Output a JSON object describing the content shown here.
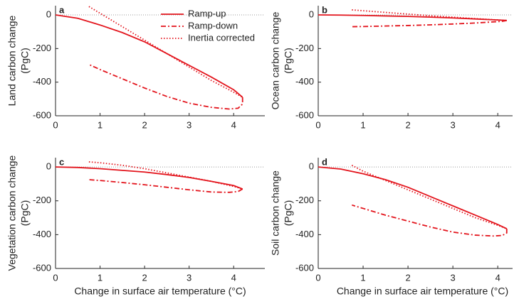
{
  "chart_data": [
    {
      "type": "line",
      "panel_label": "a",
      "ylabel": [
        "Land carbon change",
        "(PgC)"
      ],
      "xlim": [
        0,
        4.7
      ],
      "ylim": [
        -600,
        55
      ],
      "xticks": [
        0,
        1,
        2,
        3,
        4
      ],
      "yticks": [
        -600,
        -400,
        -200,
        0
      ],
      "reference_line": 0,
      "reference_color": "#999999",
      "legend": "upper-center",
      "series": [
        {
          "name": "Ramp-up",
          "style": "solid",
          "color": "#e3141c",
          "x": [
            0,
            0.5,
            1,
            1.5,
            2,
            2.5,
            3,
            3.5,
            4,
            4.2
          ],
          "values": [
            0,
            -20,
            -60,
            -105,
            -160,
            -230,
            -300,
            -370,
            -445,
            -490
          ]
        },
        {
          "name": "Ramp-down",
          "style": "dashed",
          "color": "#e3141c",
          "x": [
            4.2,
            4.2,
            4.1,
            3.9,
            3.5,
            3,
            2.5,
            2,
            1.5,
            1,
            0.75
          ],
          "values": [
            -490,
            -530,
            -555,
            -560,
            -550,
            -525,
            -485,
            -435,
            -380,
            -325,
            -295
          ]
        },
        {
          "name": "Inertia corrected",
          "style": "dotted",
          "color": "#e3141c",
          "x": [
            0.75,
            1,
            1.5,
            2,
            2.5,
            3,
            3.5,
            4,
            4.2
          ],
          "values": [
            50,
            10,
            -70,
            -150,
            -230,
            -310,
            -390,
            -460,
            -490
          ]
        }
      ]
    },
    {
      "type": "line",
      "panel_label": "b",
      "ylabel": [
        "Ocean carbon change",
        "(PgC)"
      ],
      "xlim": [
        0,
        4.33
      ],
      "ylim": [
        -600,
        55
      ],
      "xticks": [
        0,
        1,
        2,
        3,
        4
      ],
      "yticks": [
        -600,
        -400,
        -200,
        0
      ],
      "reference_line": 0,
      "reference_color": "#999999",
      "series": [
        {
          "style": "solid",
          "color": "#e3141c",
          "x": [
            0,
            0.5,
            1,
            1.5,
            2,
            2.5,
            3,
            3.5,
            4,
            4.2
          ],
          "values": [
            0,
            -1,
            -3,
            -6,
            -9,
            -13,
            -18,
            -24,
            -30,
            -33
          ]
        },
        {
          "style": "dashed",
          "color": "#e3141c",
          "x": [
            4.2,
            4.1,
            3.5,
            3,
            2.5,
            2,
            1.5,
            1,
            0.75
          ],
          "values": [
            -33,
            -38,
            -48,
            -54,
            -59,
            -63,
            -66,
            -69,
            -70
          ]
        },
        {
          "style": "dotted",
          "color": "#e3141c",
          "x": [
            0.75,
            1.5,
            2.5,
            3.5,
            4.2
          ],
          "values": [
            30,
            15,
            -5,
            -22,
            -33
          ]
        }
      ]
    },
    {
      "type": "line",
      "panel_label": "c",
      "ylabel": [
        "Vegetation carbon change",
        "(PgC)"
      ],
      "xlabel": "Change in surface air temperature (°C)",
      "xlim": [
        0,
        4.7
      ],
      "ylim": [
        -600,
        55
      ],
      "xticks": [
        0,
        1,
        2,
        3,
        4
      ],
      "yticks": [
        -600,
        -400,
        -200,
        0
      ],
      "reference_line": 0,
      "reference_color": "#999999",
      "series": [
        {
          "style": "solid",
          "color": "#e3141c",
          "x": [
            0,
            0.5,
            1,
            1.5,
            2,
            2.5,
            3,
            3.5,
            4,
            4.2
          ],
          "values": [
            0,
            -3,
            -10,
            -20,
            -30,
            -45,
            -62,
            -85,
            -110,
            -130
          ]
        },
        {
          "style": "dashed",
          "color": "#e3141c",
          "x": [
            4.2,
            4.1,
            3.9,
            3.5,
            3,
            2.5,
            2,
            1.5,
            1,
            0.75
          ],
          "values": [
            -130,
            -145,
            -150,
            -148,
            -135,
            -120,
            -105,
            -92,
            -80,
            -75
          ]
        },
        {
          "style": "dotted",
          "color": "#e3141c",
          "x": [
            0.75,
            1,
            1.5,
            2,
            2.5,
            3,
            3.5,
            4,
            4.2
          ],
          "values": [
            30,
            25,
            10,
            -10,
            -35,
            -60,
            -85,
            -115,
            -130
          ]
        }
      ]
    },
    {
      "type": "line",
      "panel_label": "d",
      "ylabel": [
        "Soil carbon change",
        "(PgC)"
      ],
      "xlabel": "Change in surface air temperature (°C)",
      "xlim": [
        0,
        4.33
      ],
      "ylim": [
        -600,
        55
      ],
      "xticks": [
        0,
        1,
        2,
        3,
        4
      ],
      "yticks": [
        -600,
        -400,
        -200,
        0
      ],
      "reference_line": 0,
      "reference_color": "#999999",
      "series": [
        {
          "style": "solid",
          "color": "#e3141c",
          "x": [
            0,
            0.5,
            1,
            1.5,
            2,
            2.5,
            3,
            3.5,
            4,
            4.2
          ],
          "values": [
            0,
            -12,
            -40,
            -75,
            -120,
            -175,
            -230,
            -285,
            -340,
            -365
          ]
        },
        {
          "style": "dashed",
          "color": "#e3141c",
          "x": [
            4.2,
            4.2,
            4.1,
            3.9,
            3.5,
            3,
            2.5,
            2,
            1.5,
            1,
            0.75
          ],
          "values": [
            -365,
            -390,
            -405,
            -408,
            -403,
            -385,
            -355,
            -320,
            -285,
            -245,
            -225
          ]
        },
        {
          "style": "dotted",
          "color": "#e3141c",
          "x": [
            0.75,
            1,
            1.5,
            2,
            2.5,
            3,
            3.5,
            4,
            4.2
          ],
          "values": [
            10,
            -25,
            -80,
            -135,
            -190,
            -245,
            -300,
            -345,
            -365
          ]
        }
      ]
    }
  ]
}
